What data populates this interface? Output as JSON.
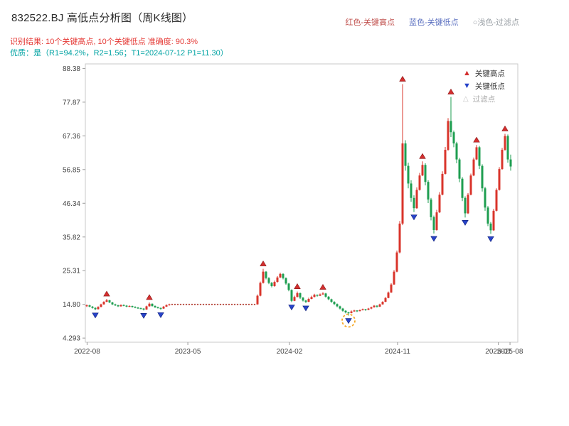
{
  "header": {
    "title": "832522.BJ 高低点分析图（周K线图）",
    "note_high": "红色-关键高点",
    "note_low": "蓝色-关键低点",
    "note_filter": "○浅色-过滤点",
    "result_line": "识别结果: 10个关键高点, 10个关键低点  准确度: 90.3%",
    "quality_line": "优质：是（R1=94.2%，R2=1.56；T1=2024-07-12 P1=11.30）"
  },
  "legend_box": {
    "high": "关键高点",
    "low": "关键低点",
    "filter": "过滤点"
  },
  "colors": {
    "up": "#d9342b",
    "down": "#1e9e50",
    "key_high": "#d32f2f",
    "key_low": "#2743c9",
    "halt": "#b03a2e",
    "t1_ring": "#f5a623",
    "note_high": "#c0504d",
    "note_low": "#5a6fc0",
    "note_filter": "#9aa0a6",
    "result": "#e53935",
    "quality": "#00a3a3"
  },
  "chart_data": {
    "type": "candlestick",
    "title": "832522.BJ 高低点分析图（周K线图）",
    "y_ticks": [
      "88.38",
      "77.87",
      "67.36",
      "56.85",
      "46.34",
      "35.82",
      "25.31",
      "14.80",
      "4.293"
    ],
    "y_domain": [
      3.0,
      89.8
    ],
    "x_ticks": [
      {
        "label": "2022-08",
        "f": 0.004
      },
      {
        "label": "2023-05",
        "f": 0.237
      },
      {
        "label": "2024-02",
        "f": 0.472
      },
      {
        "label": "2024-11",
        "f": 0.722
      },
      {
        "label": "2025-07",
        "f": 0.955
      },
      {
        "label": "2025-08",
        "f": 0.982
      }
    ],
    "halt_value": 14.8,
    "series": [
      [
        14.3,
        14.8,
        14.0,
        14.5
      ],
      [
        14.5,
        14.7,
        13.9,
        14.1
      ],
      [
        14.1,
        14.3,
        13.5,
        13.7
      ],
      [
        13.7,
        13.9,
        13.0,
        13.3
      ],
      [
        13.3,
        14.2,
        13.2,
        14.0
      ],
      [
        14.0,
        15.0,
        13.9,
        14.8
      ],
      [
        14.8,
        15.8,
        14.7,
        15.6
      ],
      [
        15.6,
        16.5,
        15.5,
        16.1
      ],
      [
        16.1,
        16.2,
        15.2,
        15.4
      ],
      [
        15.4,
        15.6,
        14.6,
        14.8
      ],
      [
        14.8,
        15.0,
        14.3,
        14.5
      ],
      [
        14.5,
        14.7,
        14.0,
        14.2
      ],
      [
        14.2,
        14.8,
        14.1,
        14.6
      ],
      [
        14.6,
        14.8,
        14.2,
        14.4
      ],
      [
        14.4,
        14.6,
        13.9,
        14.1
      ],
      [
        14.1,
        14.5,
        14.0,
        14.3
      ],
      [
        14.3,
        14.4,
        13.8,
        14.0
      ],
      [
        14.0,
        14.2,
        13.6,
        13.8
      ],
      [
        13.8,
        14.0,
        13.4,
        13.6
      ],
      [
        13.6,
        13.8,
        13.3,
        13.5
      ],
      [
        13.5,
        13.6,
        12.9,
        13.2
      ],
      [
        13.2,
        14.4,
        13.1,
        14.2
      ],
      [
        14.2,
        15.4,
        14.1,
        15.0
      ],
      [
        15.0,
        15.1,
        14.1,
        14.3
      ],
      [
        14.3,
        14.5,
        13.7,
        13.9
      ],
      [
        13.9,
        14.1,
        13.5,
        13.7
      ],
      [
        13.7,
        13.8,
        13.1,
        13.5
      ],
      [
        13.5,
        14.3,
        13.4,
        14.1
      ],
      [
        14.1,
        14.8,
        14.0,
        14.6
      ],
      [
        14.6,
        15.0,
        14.4,
        14.8
      ],
      14.8,
      14.8,
      14.8,
      14.8,
      14.8,
      14.8,
      14.8,
      14.8,
      14.8,
      14.8,
      14.8,
      14.8,
      14.8,
      14.8,
      14.8,
      14.8,
      14.8,
      14.8,
      14.8,
      14.8,
      14.8,
      14.8,
      14.8,
      14.8,
      14.8,
      14.8,
      14.8,
      14.8,
      14.8,
      14.8,
      [
        14.8,
        17.9,
        14.7,
        17.5
      ],
      [
        17.5,
        21.9,
        17.3,
        21.5
      ],
      [
        21.5,
        25.9,
        21.3,
        25.0
      ],
      [
        25.0,
        25.2,
        22.6,
        23.0
      ],
      [
        23.0,
        23.3,
        21.1,
        21.5
      ],
      [
        21.5,
        21.8,
        20.1,
        20.5
      ],
      [
        20.5,
        22.2,
        20.3,
        21.8
      ],
      [
        21.8,
        23.6,
        21.6,
        23.2
      ],
      [
        23.2,
        24.7,
        23.0,
        24.3
      ],
      [
        24.3,
        24.5,
        22.6,
        23.0
      ],
      [
        23.0,
        23.2,
        20.9,
        21.3
      ],
      [
        21.3,
        21.5,
        18.9,
        19.3
      ],
      [
        19.3,
        19.5,
        15.5,
        15.9
      ],
      [
        15.9,
        17.5,
        15.8,
        17.1
      ],
      [
        17.1,
        18.8,
        17.0,
        18.3
      ],
      [
        18.3,
        18.5,
        16.5,
        16.9
      ],
      [
        16.9,
        17.1,
        15.7,
        16.0
      ],
      [
        16.0,
        16.2,
        15.2,
        15.6
      ],
      [
        15.6,
        16.9,
        15.5,
        16.5
      ],
      [
        16.5,
        17.5,
        16.4,
        17.1
      ],
      [
        17.1,
        18.1,
        17.0,
        17.8
      ],
      [
        17.8,
        17.9,
        17.2,
        17.5
      ],
      [
        17.5,
        18.2,
        17.4,
        17.9
      ],
      [
        17.9,
        18.6,
        17.8,
        18.2
      ],
      [
        18.2,
        18.4,
        16.9,
        17.2
      ],
      [
        17.2,
        17.4,
        16.1,
        16.4
      ],
      [
        16.4,
        16.6,
        15.3,
        15.6
      ],
      [
        15.6,
        15.8,
        14.6,
        14.9
      ],
      [
        14.9,
        15.1,
        13.9,
        14.2
      ],
      [
        14.2,
        14.4,
        13.2,
        13.5
      ],
      [
        13.5,
        13.7,
        12.5,
        12.8
      ],
      [
        12.8,
        13.0,
        12.0,
        12.3
      ],
      [
        12.3,
        12.5,
        11.3,
        12.1
      ],
      [
        12.1,
        12.9,
        12.0,
        12.6
      ],
      [
        12.6,
        13.1,
        12.5,
        12.9
      ],
      [
        12.9,
        13.0,
        12.4,
        12.7
      ],
      [
        12.7,
        13.2,
        12.6,
        13.0
      ],
      [
        13.0,
        13.5,
        12.9,
        13.3
      ],
      [
        13.3,
        13.4,
        12.8,
        13.1
      ],
      [
        13.1,
        13.7,
        13.0,
        13.5
      ],
      [
        13.5,
        14.1,
        13.3,
        13.9
      ],
      [
        13.9,
        14.6,
        13.8,
        14.4
      ],
      [
        14.4,
        14.5,
        13.8,
        14.1
      ],
      [
        14.1,
        15.0,
        14.0,
        14.8
      ],
      [
        14.8,
        15.8,
        14.7,
        15.6
      ],
      [
        15.6,
        17.1,
        15.5,
        16.8
      ],
      [
        16.8,
        18.8,
        16.7,
        18.5
      ],
      [
        18.5,
        21.4,
        18.4,
        21.0
      ],
      [
        21.0,
        25.5,
        20.9,
        25.0
      ],
      [
        25.0,
        31.6,
        24.8,
        31.0
      ],
      [
        31.0,
        40.8,
        30.7,
        40.0
      ],
      [
        40.0,
        83.5,
        39.5,
        65.0
      ],
      [
        65.0,
        66.0,
        56.5,
        58.0
      ],
      [
        58.0,
        59.0,
        51.0,
        52.5
      ],
      [
        52.5,
        53.5,
        46.8,
        48.0
      ],
      [
        48.0,
        48.8,
        43.6,
        44.8
      ],
      [
        44.8,
        51.3,
        44.6,
        50.5
      ],
      [
        50.5,
        55.8,
        50.3,
        55.0
      ],
      [
        55.0,
        59.4,
        54.8,
        58.3
      ],
      [
        58.3,
        58.8,
        51.9,
        53.0
      ],
      [
        53.0,
        53.5,
        46.4,
        47.5
      ],
      [
        47.5,
        48.0,
        41.0,
        42.0
      ],
      [
        42.0,
        42.5,
        36.9,
        38.0
      ],
      [
        38.0,
        44.3,
        37.8,
        43.5
      ],
      [
        43.5,
        49.8,
        43.3,
        49.0
      ],
      [
        49.0,
        56.3,
        48.8,
        55.5
      ],
      [
        55.5,
        63.9,
        55.3,
        63.0
      ],
      [
        63.0,
        72.9,
        62.7,
        72.0
      ],
      [
        72.0,
        79.5,
        67.0,
        68.5
      ],
      [
        68.5,
        69.0,
        63.8,
        65.0
      ],
      [
        65.0,
        65.5,
        58.8,
        60.0
      ],
      [
        60.0,
        60.5,
        52.9,
        54.0
      ],
      [
        54.0,
        54.5,
        47.0,
        48.0
      ],
      [
        48.0,
        48.5,
        41.9,
        43.2
      ],
      [
        43.2,
        49.5,
        43.0,
        49.0
      ],
      [
        49.0,
        55.6,
        48.8,
        55.0
      ],
      [
        55.0,
        60.6,
        54.8,
        60.0
      ],
      [
        60.0,
        64.5,
        59.8,
        63.8
      ],
      [
        63.8,
        64.2,
        57.0,
        58.0
      ],
      [
        58.0,
        58.5,
        50.0,
        51.0
      ],
      [
        51.0,
        51.5,
        44.0,
        45.0
      ],
      [
        45.0,
        45.5,
        39.2,
        40.0
      ],
      [
        40.0,
        40.5,
        36.8,
        37.9
      ],
      [
        37.9,
        44.6,
        37.7,
        44.0
      ],
      [
        44.0,
        51.0,
        43.8,
        50.5
      ],
      [
        50.5,
        57.6,
        50.3,
        57.0
      ],
      [
        57.0,
        63.6,
        56.8,
        63.0
      ],
      [
        63.0,
        68.0,
        62.7,
        67.3
      ],
      [
        67.3,
        67.8,
        59.0,
        60.0
      ],
      [
        60.0,
        61.5,
        56.5,
        57.8
      ]
    ],
    "markers": {
      "highs": [
        7,
        22,
        62,
        74,
        83,
        111,
        118,
        128,
        137,
        147
      ],
      "lows": [
        3,
        20,
        26,
        72,
        77,
        92,
        115,
        122,
        133,
        142
      ],
      "t1_index": 92
    }
  }
}
